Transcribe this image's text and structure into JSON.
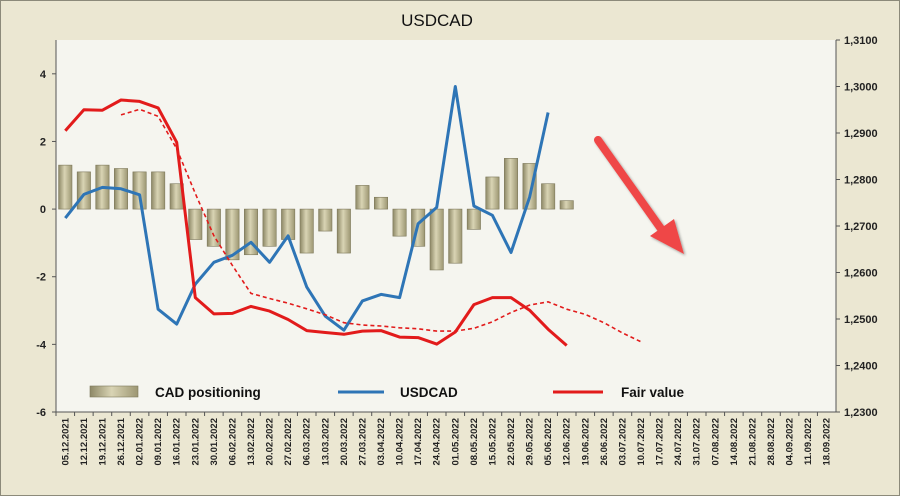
{
  "chart_data": {
    "type": "bar+line",
    "title": "USDCAD",
    "left_axis": {
      "ylim": [
        -6,
        5
      ],
      "ticks": [
        "4",
        "2",
        "0",
        "-2",
        "-4",
        "-6"
      ],
      "tick_values": [
        4,
        2,
        0,
        -2,
        -4,
        -6
      ]
    },
    "right_axis": {
      "ylim": [
        1.23,
        1.31
      ],
      "ticks": [
        "1,3100",
        "1,3000",
        "1,2900",
        "1,2800",
        "1,2700",
        "1,2600",
        "1,2500",
        "1,2400",
        "1,2300"
      ],
      "tick_values": [
        1.31,
        1.3,
        1.29,
        1.28,
        1.27,
        1.26,
        1.25,
        1.24,
        1.23
      ]
    },
    "x_labels": [
      "05.12.2021",
      "12.12.2021",
      "19.12.2021",
      "26.12.2021",
      "02.01.2022",
      "09.01.2022",
      "16.01.2022",
      "23.01.2022",
      "30.01.2022",
      "06.02.2022",
      "13.02.2022",
      "20.02.2022",
      "27.02.2022",
      "06.03.2022",
      "13.03.2022",
      "20.03.2022",
      "27.03.2022",
      "03.04.2022",
      "10.04.2022",
      "17.04.2022",
      "24.04.2022",
      "01.05.2022",
      "08.05.2022",
      "15.05.2022",
      "22.05.2022",
      "29.05.2022",
      "05.06.2022",
      "12.06.2022",
      "19.06.2022",
      "26.06.2022",
      "03.07.2022",
      "10.07.2022",
      "17.07.2022",
      "24.07.2022",
      "31.07.2022",
      "07.08.2022",
      "14.08.2022",
      "21.08.2022",
      "28.08.2022",
      "04.09.2022",
      "11.09.2022",
      "18.09.2022"
    ],
    "grid": false,
    "legend_position": "bottom",
    "series": [
      {
        "name": "CAD positioning",
        "kind": "bar",
        "axis": "left",
        "values": [
          1.3,
          1.1,
          1.3,
          1.2,
          1.1,
          1.1,
          0.75,
          -0.9,
          -1.1,
          -1.5,
          -1.35,
          -1.1,
          -0.9,
          -1.3,
          -0.65,
          -1.3,
          0.7,
          0.35,
          -0.8,
          -1.1,
          -1.8,
          -1.6,
          -0.6,
          0.95,
          1.5,
          1.35,
          0.75,
          0.25
        ]
      },
      {
        "name": "USDCAD",
        "kind": "line",
        "axis": "right",
        "values": [
          1.2717,
          1.2768,
          1.2783,
          1.278,
          1.2767,
          1.2521,
          1.2489,
          1.2575,
          1.2622,
          1.2637,
          1.2665,
          1.2622,
          1.2679,
          1.2569,
          1.2506,
          1.2476,
          1.2539,
          1.2553,
          1.2546,
          1.2705,
          1.274,
          1.3,
          1.2743,
          1.2723,
          1.2643,
          1.2762,
          1.2944
        ]
      },
      {
        "name": "Fair value",
        "kind": "line",
        "axis": "right",
        "values": [
          1.2905,
          1.295,
          1.2949,
          1.2971,
          1.2968,
          1.2954,
          1.288,
          1.2546,
          1.2511,
          1.2512,
          1.2527,
          1.2517,
          1.2499,
          1.2475,
          1.2471,
          1.2467,
          1.2474,
          1.2475,
          1.2461,
          1.246,
          1.2446,
          1.2472,
          1.2531,
          1.2546,
          1.2546,
          1.2519,
          1.2478,
          1.2443
        ]
      },
      {
        "name": "",
        "kind": "dashed-line",
        "axis": "right",
        "start_index": 3,
        "values": [
          1.2939,
          1.2951,
          1.2936,
          1.2866,
          1.277,
          1.2679,
          1.2615,
          1.2555,
          1.2544,
          1.2534,
          1.2522,
          1.2509,
          1.2492,
          1.2487,
          1.2485,
          1.2481,
          1.2479,
          1.2474,
          1.2474,
          1.248,
          1.2494,
          1.2514,
          1.253,
          1.2537,
          1.2521,
          1.251,
          1.2492,
          1.247,
          1.2451
        ]
      }
    ],
    "annotations": [
      {
        "type": "arrow",
        "color": "#ef4747",
        "direction": "down-right"
      }
    ],
    "colors": {
      "bar": "#b8b28e",
      "usdcad": "#2e75b6",
      "fair_value": "#e21b1b",
      "background": "#ebe7d2",
      "plot_area": "#f5f5ef"
    }
  }
}
